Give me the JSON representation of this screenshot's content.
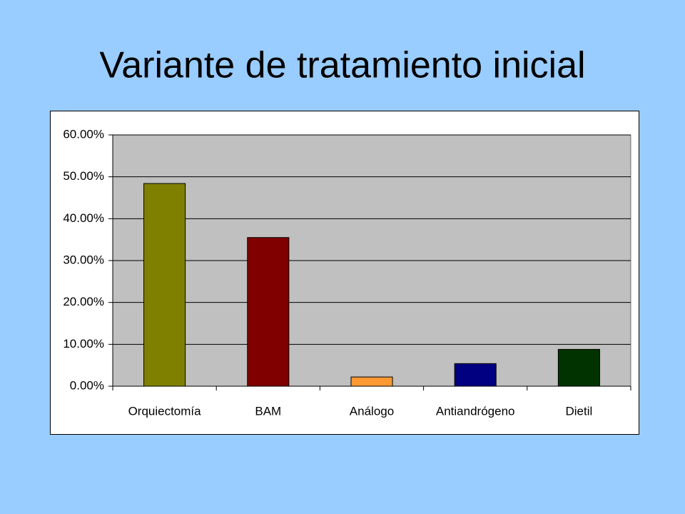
{
  "chart_data": {
    "type": "bar",
    "title": "Variante de tratamiento inicial",
    "categories": [
      "Orquiectomía",
      "BAM",
      "Análogo",
      "Antiandrógeno",
      "Dietil"
    ],
    "values": [
      48.4,
      35.5,
      2.2,
      5.4,
      8.8
    ],
    "colors": [
      "#808000",
      "#800000",
      "#ff9933",
      "#000080",
      "#003300"
    ],
    "ylim": [
      0,
      60
    ],
    "yticks": [
      {
        "value": 0,
        "label": "0.00%"
      },
      {
        "value": 10,
        "label": "10.00%"
      },
      {
        "value": 20,
        "label": "20.00%"
      },
      {
        "value": 30,
        "label": "30.00%"
      },
      {
        "value": 40,
        "label": "40.00%"
      },
      {
        "value": 50,
        "label": "50.00%"
      },
      {
        "value": 60,
        "label": "60.00%"
      }
    ],
    "grid": true
  }
}
